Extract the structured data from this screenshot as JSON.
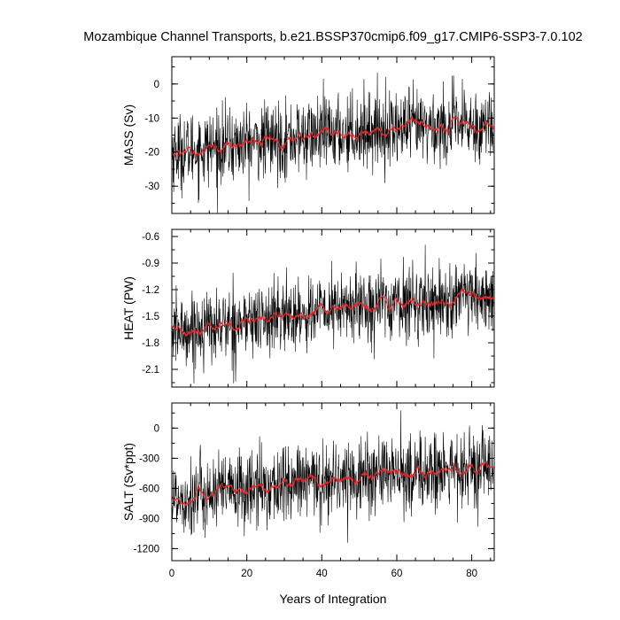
{
  "figure": {
    "title": "Mozambique Channel Transports, b.e21.BSSP370cmip6.f09_g17.CMIP6-SSP3-7.0.102",
    "xlabel": "Years of Integration"
  },
  "chart_data": [
    {
      "type": "line",
      "ylabel": "MASS (Sv)",
      "xlim": [
        0,
        86
      ],
      "ylim": [
        -38,
        8
      ],
      "x_ticks": [
        0,
        20,
        40,
        60,
        80
      ],
      "y_ticks": [
        0,
        -10,
        -20,
        -30
      ],
      "y_tick_labels": [
        "0",
        "-10",
        "-20",
        "-30"
      ],
      "monthly_mean_start": -20,
      "monthly_mean_end": -12,
      "monthly_spread": 6.5,
      "running_mean_color": "#e8292b",
      "raw_color": "#000000"
    },
    {
      "type": "line",
      "ylabel": "HEAT (PW)",
      "xlim": [
        0,
        86
      ],
      "ylim": [
        -2.3,
        -0.52
      ],
      "x_ticks": [
        0,
        20,
        40,
        60,
        80
      ],
      "y_ticks": [
        -0.6,
        -0.9,
        -1.2,
        -1.5,
        -1.8,
        -2.1
      ],
      "y_tick_labels": [
        "-0.6",
        "-0.9",
        "-1.2",
        "-1.5",
        "-1.8",
        "-2.1"
      ],
      "monthly_mean_start": -1.68,
      "monthly_mean_end": -1.3,
      "monthly_spread": 0.24,
      "running_mean_color": "#e8292b",
      "raw_color": "#000000"
    },
    {
      "type": "line",
      "ylabel": "SALT (Sv*ppt)",
      "xlim": [
        0,
        86
      ],
      "ylim": [
        -1320,
        250
      ],
      "x_ticks": [
        0,
        20,
        40,
        60,
        80
      ],
      "y_ticks": [
        0,
        -300,
        -600,
        -900,
        -1200
      ],
      "y_tick_labels": [
        "0",
        "-300",
        "-600",
        "-900",
        "-1200"
      ],
      "monthly_mean_start": -700,
      "monthly_mean_end": -420,
      "monthly_spread": 230,
      "running_mean_color": "#e8292b",
      "raw_color": "#000000"
    }
  ]
}
